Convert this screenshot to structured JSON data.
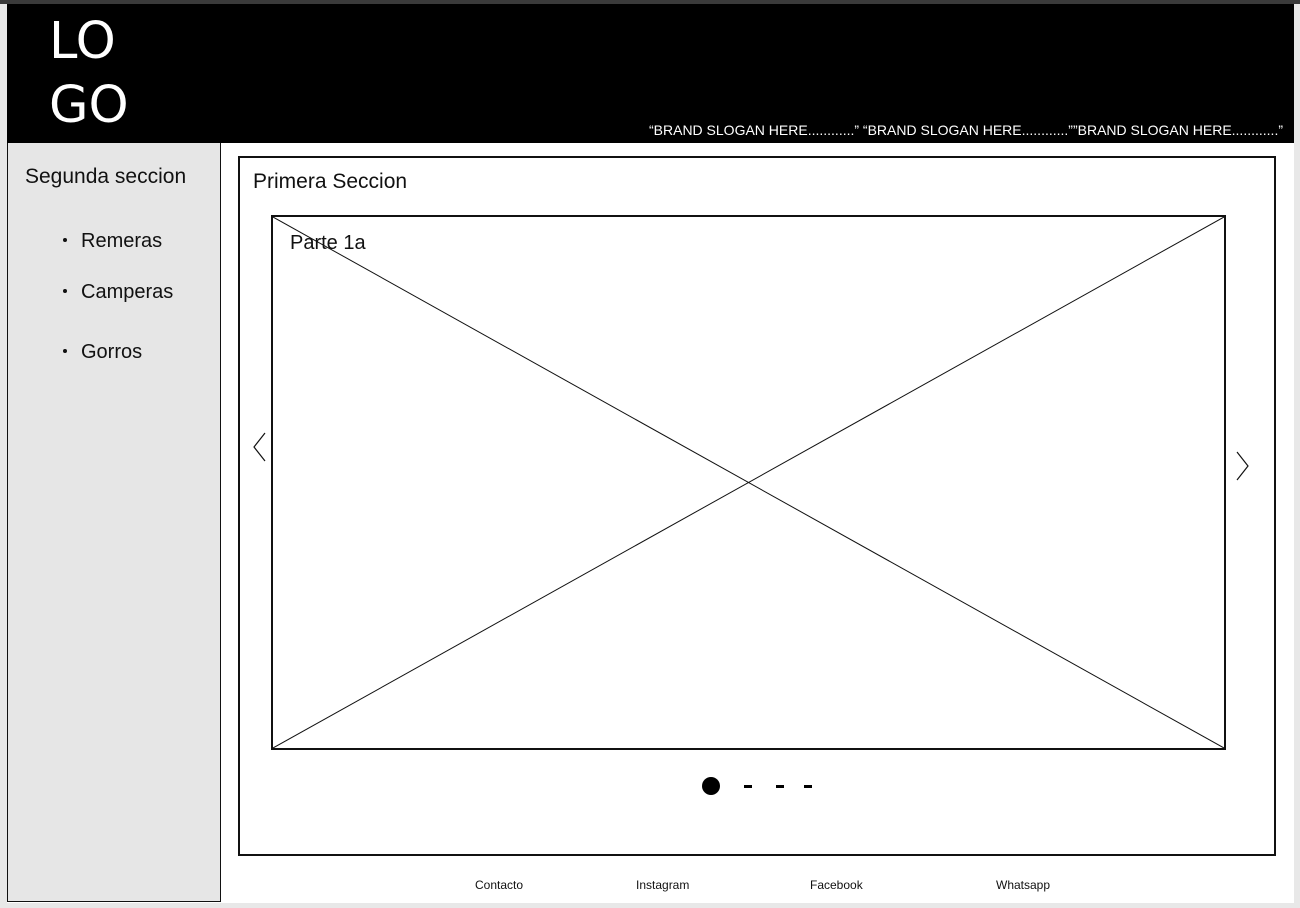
{
  "header": {
    "logo_line1": "LO",
    "logo_line2": "GO",
    "slogan": "“BRAND SLOGAN HERE............” “BRAND SLOGAN HERE............””BRAND SLOGAN HERE............”"
  },
  "sidebar": {
    "title": "Segunda seccion",
    "items": [
      {
        "label": "Remeras"
      },
      {
        "label": "Camperas"
      },
      {
        "label": "Gorros"
      }
    ]
  },
  "main": {
    "title": "Primera Seccion",
    "carousel": {
      "slide_label": "Parte 1a",
      "prev_icon": "chevron-left-icon",
      "next_icon": "chevron-right-icon"
    }
  },
  "footer": {
    "links": [
      {
        "label": "Contacto"
      },
      {
        "label": "Instagram"
      },
      {
        "label": "Facebook"
      },
      {
        "label": "Whatsapp"
      }
    ]
  }
}
